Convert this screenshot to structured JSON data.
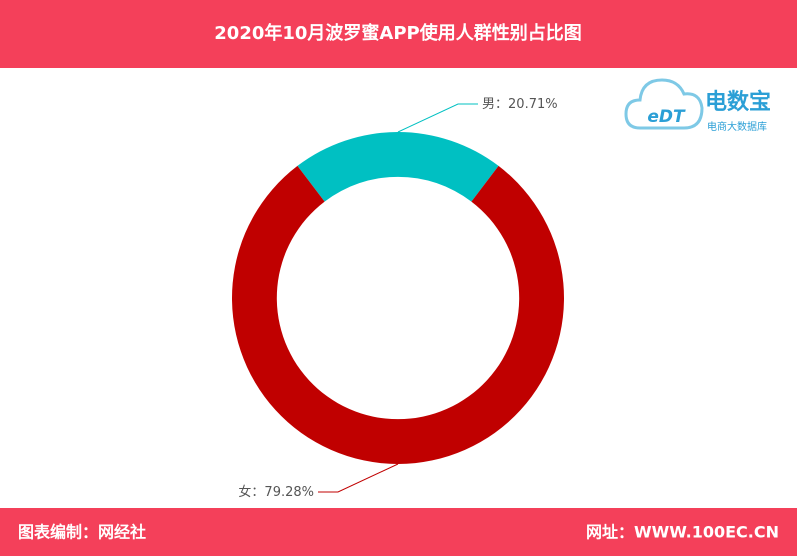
{
  "header": {
    "title": "2020年10月波罗蜜APP使用人群性别占比图"
  },
  "chart_data": {
    "type": "pie",
    "inner_radius_ratio": 0.73,
    "categories": [
      "男",
      "女"
    ],
    "values": [
      20.71,
      79.28
    ],
    "value_labels": [
      "20.71%",
      "79.28%"
    ],
    "label_separator": "：",
    "colors": [
      "#00c0c2",
      "#c00000"
    ]
  },
  "watermark": {
    "logo_text": "eDT",
    "name": "电数宝",
    "subtitle": "电商大数据库"
  },
  "footer": {
    "left": "图表编制：网经社",
    "right": "网址：WWW.100EC.CN"
  }
}
